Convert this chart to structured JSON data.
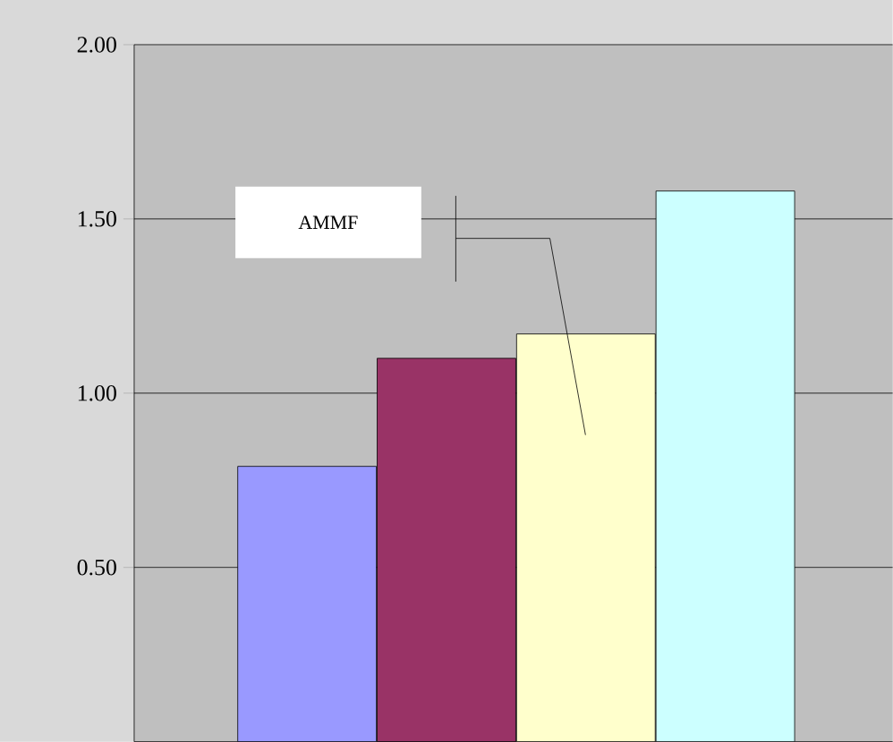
{
  "chart_data": {
    "type": "bar",
    "categories": [
      null,
      null,
      null,
      null
    ],
    "values": [
      0.79,
      1.1,
      1.17,
      1.58
    ],
    "colors": [
      "#9999ff",
      "#993366",
      "#ffffcc",
      "#ccffff"
    ],
    "ylim": [
      0,
      2
    ],
    "yticks": [
      {
        "value": 0.5,
        "label": "0.50"
      },
      {
        "value": 1.0,
        "label": "1.00"
      },
      {
        "value": 1.5,
        "label": "1.50"
      },
      {
        "value": 2.0,
        "label": "2.00"
      }
    ],
    "grid": "y",
    "annotations": [
      "AMMF"
    ]
  }
}
